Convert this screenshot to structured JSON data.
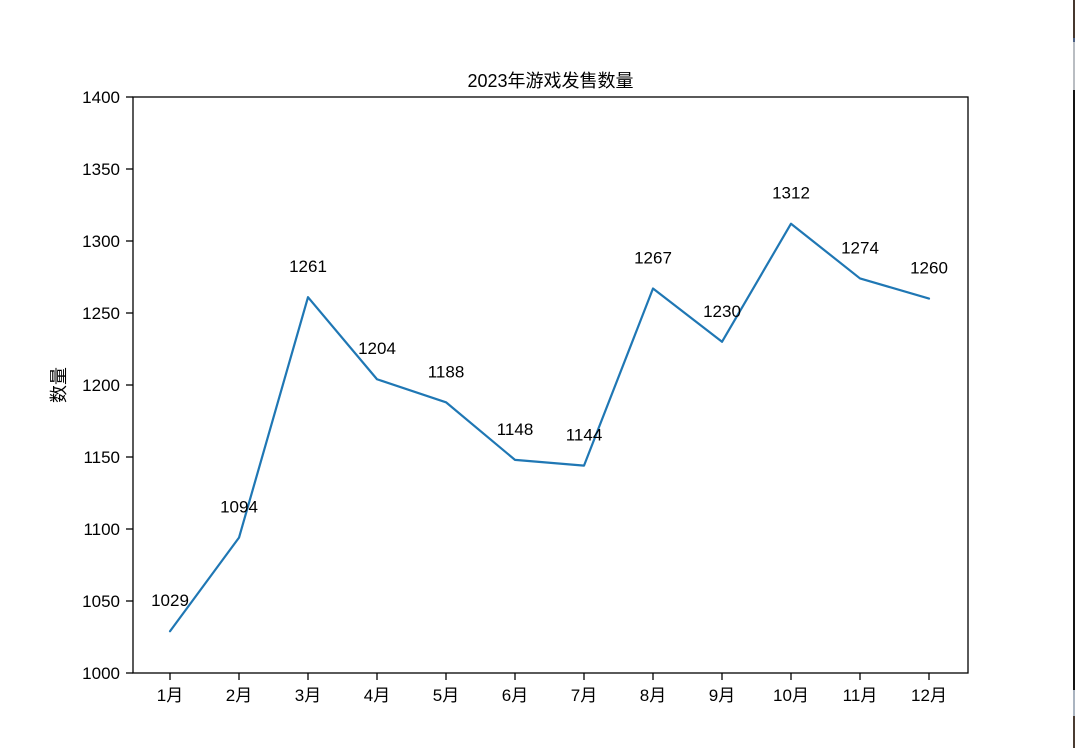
{
  "chart_data": {
    "type": "line",
    "title": "2023年游戏发售数量",
    "xlabel": "",
    "ylabel": "数量",
    "categories": [
      "1月",
      "2月",
      "3月",
      "4月",
      "5月",
      "6月",
      "7月",
      "8月",
      "9月",
      "10月",
      "11月",
      "12月"
    ],
    "values": [
      1029,
      1094,
      1261,
      1204,
      1188,
      1148,
      1144,
      1267,
      1230,
      1312,
      1274,
      1260
    ],
    "point_labels": [
      "1029",
      "1094",
      "1261",
      "1204",
      "1188",
      "1148",
      "1144",
      "1267",
      "1230",
      "1312",
      "1274",
      "1260"
    ],
    "ylim": [
      1000,
      1400
    ],
    "yticks": [
      1000,
      1050,
      1100,
      1150,
      1200,
      1250,
      1300,
      1350,
      1400
    ],
    "line_color": "#1f77b4",
    "axis_color": "#000000",
    "grid": false,
    "legend_position": "none"
  }
}
